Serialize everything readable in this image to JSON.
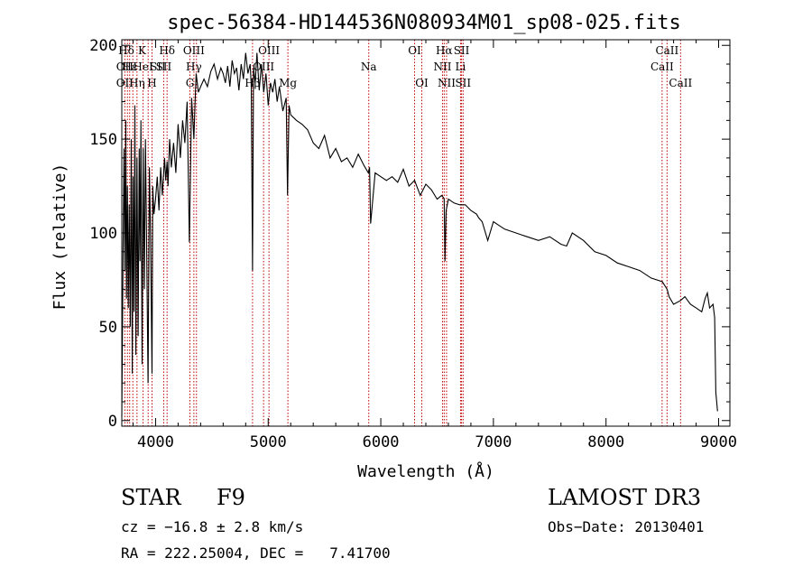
{
  "chart_data": {
    "type": "line",
    "title": "spec-56384-HD144536N080934M01_sp08-025.fits",
    "xlabel": "Wavelength (Å)",
    "ylabel": "Flux (relative)",
    "xlim": [
      3700,
      9100
    ],
    "ylim": [
      -3,
      203
    ],
    "xticks": [
      4000,
      5000,
      6000,
      7000,
      8000,
      9000
    ],
    "yticks": [
      0,
      50,
      100,
      150,
      200
    ],
    "series": [
      {
        "name": "spectrum",
        "x": [
          3700,
          3705,
          3712,
          3720,
          3728,
          3735,
          3742,
          3750,
          3758,
          3766,
          3775,
          3784,
          3793,
          3800,
          3808,
          3816,
          3825,
          3835,
          3845,
          3855,
          3862,
          3870,
          3880,
          3890,
          3900,
          3910,
          3920,
          3933,
          3945,
          3955,
          3968,
          3975,
          3985,
          4000,
          4015,
          4030,
          4045,
          4060,
          4080,
          4090,
          4102,
          4110,
          4125,
          4140,
          4160,
          4180,
          4200,
          4220,
          4240,
          4260,
          4280,
          4300,
          4320,
          4340,
          4350,
          4360,
          4380,
          4400,
          4430,
          4460,
          4490,
          4520,
          4550,
          4580,
          4600,
          4620,
          4640,
          4660,
          4680,
          4700,
          4720,
          4740,
          4760,
          4780,
          4800,
          4820,
          4840,
          4850,
          4861,
          4870,
          4885,
          4900,
          4920,
          4940,
          4960,
          4980,
          5000,
          5020,
          5040,
          5060,
          5080,
          5100,
          5130,
          5160,
          5172,
          5185,
          5200,
          5250,
          5300,
          5350,
          5400,
          5450,
          5500,
          5550,
          5600,
          5650,
          5700,
          5750,
          5800,
          5850,
          5890,
          5900,
          5910,
          5950,
          6000,
          6050,
          6100,
          6150,
          6200,
          6250,
          6300,
          6350,
          6400,
          6450,
          6500,
          6540,
          6555,
          6563,
          6570,
          6580,
          6600,
          6650,
          6700,
          6750,
          6800,
          6850,
          6870,
          6900,
          6950,
          7000,
          7050,
          7100,
          7150,
          7200,
          7250,
          7300,
          7400,
          7500,
          7600,
          7650,
          7700,
          7800,
          7900,
          8000,
          8100,
          8200,
          8300,
          8400,
          8500,
          8542,
          8560,
          8600,
          8662,
          8700,
          8750,
          8800,
          8850,
          8880,
          8900,
          8920,
          8950,
          8965,
          8975,
          8990
        ],
        "y": [
          2,
          40,
          95,
          145,
          80,
          160,
          65,
          125,
          60,
          115,
          50,
          150,
          25,
          130,
          58,
          168,
          35,
          140,
          45,
          145,
          85,
          160,
          30,
          145,
          70,
          150,
          95,
          20,
          135,
          100,
          25,
          125,
          110,
          118,
          130,
          112,
          135,
          120,
          140,
          128,
          138,
          125,
          150,
          135,
          148,
          132,
          158,
          140,
          160,
          148,
          170,
          95,
          172,
          150,
          168,
          185,
          175,
          178,
          182,
          178,
          186,
          190,
          182,
          188,
          185,
          180,
          189,
          178,
          192,
          185,
          188,
          176,
          190,
          182,
          196,
          185,
          190,
          178,
          80,
          188,
          180,
          196,
          176,
          190,
          175,
          185,
          168,
          180,
          175,
          182,
          170,
          178,
          165,
          172,
          120,
          168,
          163,
          160,
          158,
          155,
          148,
          145,
          152,
          140,
          145,
          138,
          140,
          135,
          142,
          136,
          132,
          135,
          105,
          132,
          130,
          128,
          130,
          127,
          134,
          125,
          128,
          120,
          126,
          123,
          118,
          120,
          119,
          118,
          85,
          112,
          118,
          116,
          115,
          115,
          112,
          110,
          108,
          106,
          96,
          106,
          104,
          102,
          101,
          100,
          99,
          98,
          96,
          98,
          94,
          93,
          100,
          96,
          90,
          88,
          84,
          82,
          80,
          76,
          74,
          70,
          66,
          62,
          64,
          66,
          62,
          60,
          58,
          65,
          68,
          60,
          62,
          55,
          15,
          5
        ]
      }
    ],
    "spectral_lines": [
      {
        "label": "Hδ",
        "x": 3740,
        "row": 1
      },
      {
        "label": "OII",
        "x": 3727,
        "row": 2
      },
      {
        "label": "OII",
        "x": 3727,
        "row": 3
      },
      {
        "label": "Hε",
        "x": 3770,
        "row": 2
      },
      {
        "label": "Hη",
        "x": 3835,
        "row": 3
      },
      {
        "label": "K",
        "x": 3880,
        "row": 1
      },
      {
        "label": "HeI",
        "x": 3889,
        "row": 2
      },
      {
        "label": "H",
        "x": 3968,
        "row": 3
      },
      {
        "label": "SII",
        "x": 4020,
        "row": 2
      },
      {
        "label": "Hδ",
        "x": 4102,
        "row": 1
      },
      {
        "label": "SII",
        "x": 4072,
        "row": 2
      },
      {
        "label": "OIII",
        "x": 4340,
        "row": 1
      },
      {
        "label": "Hγ",
        "x": 4340,
        "row": 2
      },
      {
        "label": "G",
        "x": 4305,
        "row": 3
      },
      {
        "label": "OIII",
        "x": 5007,
        "row": 1
      },
      {
        "label": "OIII",
        "x": 4959,
        "row": 2
      },
      {
        "label": "Hβ",
        "x": 4861,
        "row": 3
      },
      {
        "label": "Mg",
        "x": 5175,
        "row": 3
      },
      {
        "label": "Na",
        "x": 5893,
        "row": 2
      },
      {
        "label": "OI",
        "x": 6300,
        "row": 1
      },
      {
        "label": "OI",
        "x": 6364,
        "row": 3
      },
      {
        "label": "Hα",
        "x": 6563,
        "row": 1
      },
      {
        "label": "SII",
        "x": 6717,
        "row": 1
      },
      {
        "label": "NII",
        "x": 6548,
        "row": 2
      },
      {
        "label": "Li",
        "x": 6708,
        "row": 2
      },
      {
        "label": "NII",
        "x": 6584,
        "row": 3
      },
      {
        "label": "SII",
        "x": 6731,
        "row": 3
      },
      {
        "label": "CaII",
        "x": 8542,
        "row": 1
      },
      {
        "label": "CaII",
        "x": 8498,
        "row": 2
      },
      {
        "label": "CaII",
        "x": 8662,
        "row": 3
      }
    ],
    "line_marker_positions": [
      3727,
      3750,
      3770,
      3798,
      3835,
      3889,
      3934,
      3968,
      4072,
      4102,
      4305,
      4340,
      4363,
      4861,
      4959,
      5007,
      5175,
      5893,
      6300,
      6364,
      6548,
      6563,
      6584,
      6708,
      6717,
      6731,
      8498,
      8542,
      8662
    ],
    "line_marker_color": "#c00000",
    "grid": false
  },
  "info": {
    "object_class": "STAR",
    "subclass": "F9",
    "survey": "LAMOST DR3",
    "redshift": "cz = −16.8 ± 2.8 km/s",
    "obs_date": "Obs−Date: 20130401",
    "coords": "RA = 222.25004, DEC =   7.41700"
  }
}
